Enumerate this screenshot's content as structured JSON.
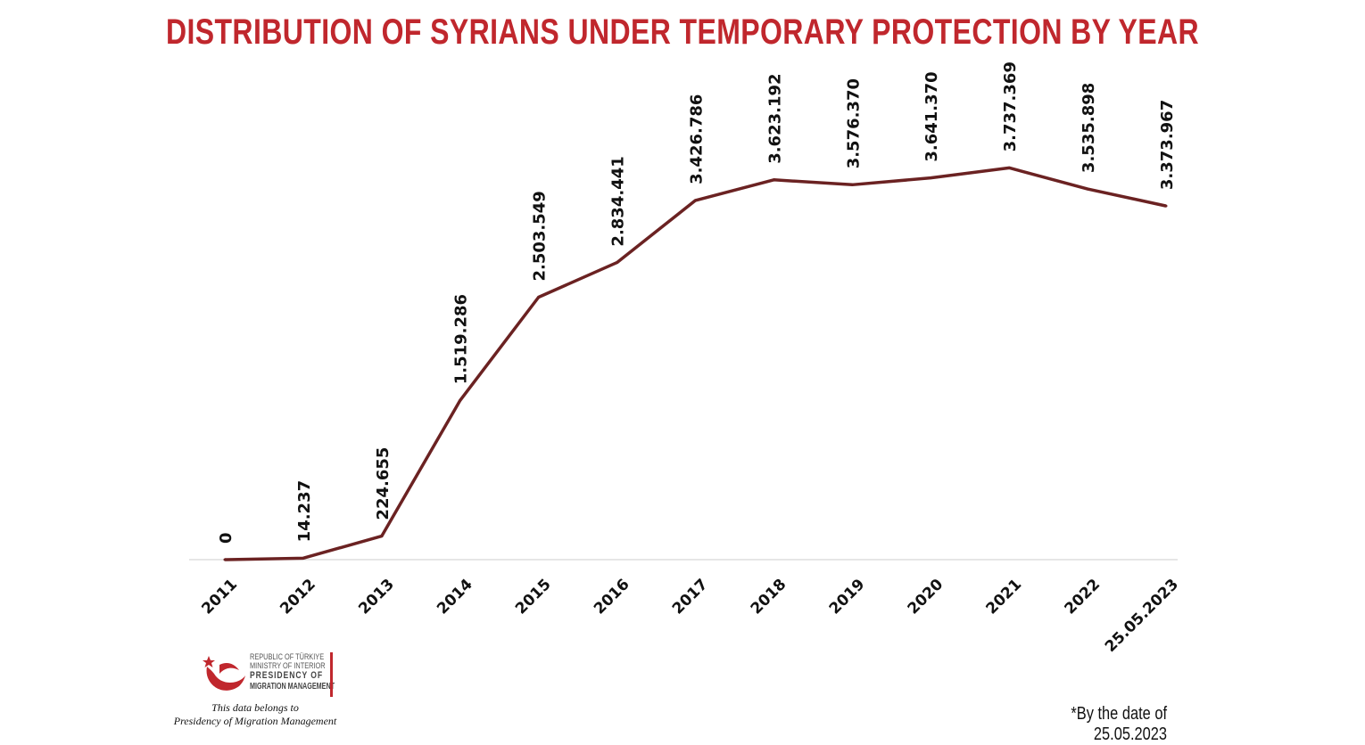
{
  "title": "DISTRIBUTION OF SYRIANS UNDER TEMPORARY PROTECTION BY YEAR",
  "colors": {
    "title": "#c0272d",
    "line": "#6b2222",
    "axis": "#cccccc",
    "logo_red": "#c0272d"
  },
  "logo": {
    "line1": "REPUBLIC OF TÜRKIYE",
    "line2": "MINISTRY OF INTERIOR",
    "line3": "PRESIDENCY OF",
    "line4": "MIGRATION MANAGEMENT",
    "icon": "crescent-star-bird-icon"
  },
  "credit": {
    "line1": "This data belongs to",
    "line2": "Presidency of Migration Management"
  },
  "footnote": "*By the date of 25.05.2023",
  "chart_data": {
    "type": "line",
    "title": "DISTRIBUTION OF SYRIANS UNDER TEMPORARY PROTECTION BY YEAR",
    "categories": [
      "2011",
      "2012",
      "2013",
      "2014",
      "2015",
      "2016",
      "2017",
      "2018",
      "2019",
      "2020",
      "2021",
      "2022",
      "25.05.2023"
    ],
    "values": [
      0,
      14237,
      224655,
      1519286,
      2503549,
      2834441,
      3426786,
      3623192,
      3576370,
      3641370,
      3737369,
      3535898,
      3373967
    ],
    "value_labels": [
      "0",
      "14.237",
      "224.655",
      "1.519.286",
      "2.503.549",
      "2.834.441",
      "3.426.786",
      "3.623.192",
      "3.576.370",
      "3.641.370",
      "3.737.369",
      "3.535.898",
      "3.373.967"
    ],
    "xlabel": "",
    "ylabel": "",
    "ylim": [
      0,
      3800000
    ],
    "grid": false,
    "legend": "none"
  }
}
